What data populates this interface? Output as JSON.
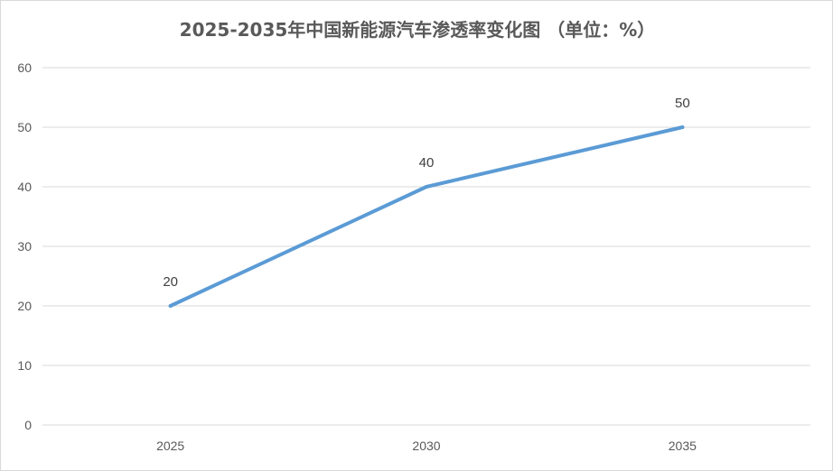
{
  "chart_data": {
    "type": "line",
    "title": "2025-2035年中国新能源汽车渗透率变化图 （单位：%）",
    "xlabel": "",
    "ylabel": "",
    "categories": [
      "2025",
      "2030",
      "2035"
    ],
    "series": [
      {
        "name": "",
        "values": [
          20,
          40,
          50
        ],
        "color": "#5b9bd5"
      }
    ],
    "ylim": [
      0,
      60
    ],
    "yticks": [
      "0",
      "10",
      "20",
      "30",
      "40",
      "50",
      "60"
    ],
    "data_labels": [
      "20",
      "40",
      "50"
    ],
    "grid": true,
    "legend": "none",
    "gridline_color": "#d9d9d9"
  }
}
